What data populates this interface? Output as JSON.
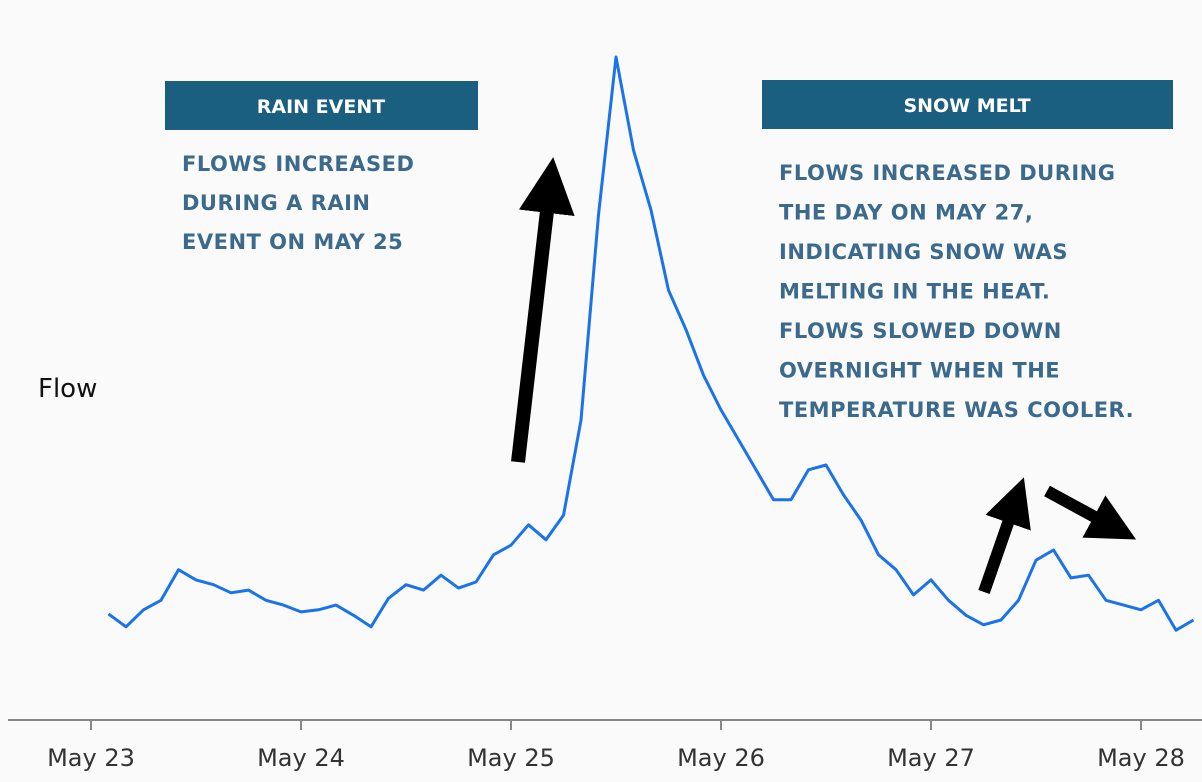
{
  "chart_data": {
    "type": "line",
    "ylabel": "Flow",
    "categories": [
      "May 23",
      null,
      null,
      null,
      null,
      null,
      null,
      null,
      null,
      null,
      null,
      null,
      "May 24",
      null,
      null,
      null,
      null,
      null,
      null,
      null,
      null,
      null,
      null,
      null,
      "May 25",
      null,
      null,
      null,
      null,
      null,
      null,
      null,
      null,
      null,
      null,
      null,
      "May 26",
      null,
      null,
      null,
      null,
      null,
      null,
      null,
      null,
      null,
      null,
      null,
      "May 27",
      null,
      null,
      null,
      null,
      null,
      null,
      null,
      null,
      null,
      null,
      null,
      "May 28",
      null,
      null,
      null
    ],
    "values": [
      null,
      15.6,
      13.7,
      16.2,
      17.6,
      22.1,
      20.6,
      19.9,
      18.7,
      19.1,
      17.6,
      16.9,
      15.9,
      16.2,
      16.9,
      15.4,
      13.7,
      17.9,
      19.9,
      19.1,
      21.3,
      19.4,
      20.3,
      24.3,
      25.7,
      28.7,
      26.5,
      30.1,
      44.1,
      74.3,
      97.5,
      83.8,
      75.0,
      63.2,
      57.4,
      50.7,
      45.6,
      41.2,
      36.8,
      32.4,
      32.4,
      36.8,
      37.5,
      33.1,
      29.4,
      24.3,
      22.1,
      18.4,
      20.6,
      17.6,
      15.4,
      14.0,
      14.7,
      17.6,
      23.5,
      25.0,
      20.9,
      21.3,
      17.6,
      16.9,
      16.2,
      17.6,
      13.2,
      14.7
    ],
    "color": "#1a73e8",
    "ylim": [
      0,
      100
    ],
    "annotations": [
      {
        "title": "RAIN EVENT",
        "lines": [
          "FLOWS INCREASED",
          "DURING A RAIN",
          "EVENT ON MAY 25"
        ]
      },
      {
        "title": "SNOW MELT",
        "lines": [
          "FLOWS INCREASED DURING",
          "THE DAY ON MAY 27,",
          "INDICATING SNOW WAS",
          "MELTING IN THE HEAT.",
          "FLOWS SLOWED DOWN",
          "OVERNIGHT WHEN THE",
          "TEMPERATURE WAS COOLER."
        ]
      }
    ]
  }
}
